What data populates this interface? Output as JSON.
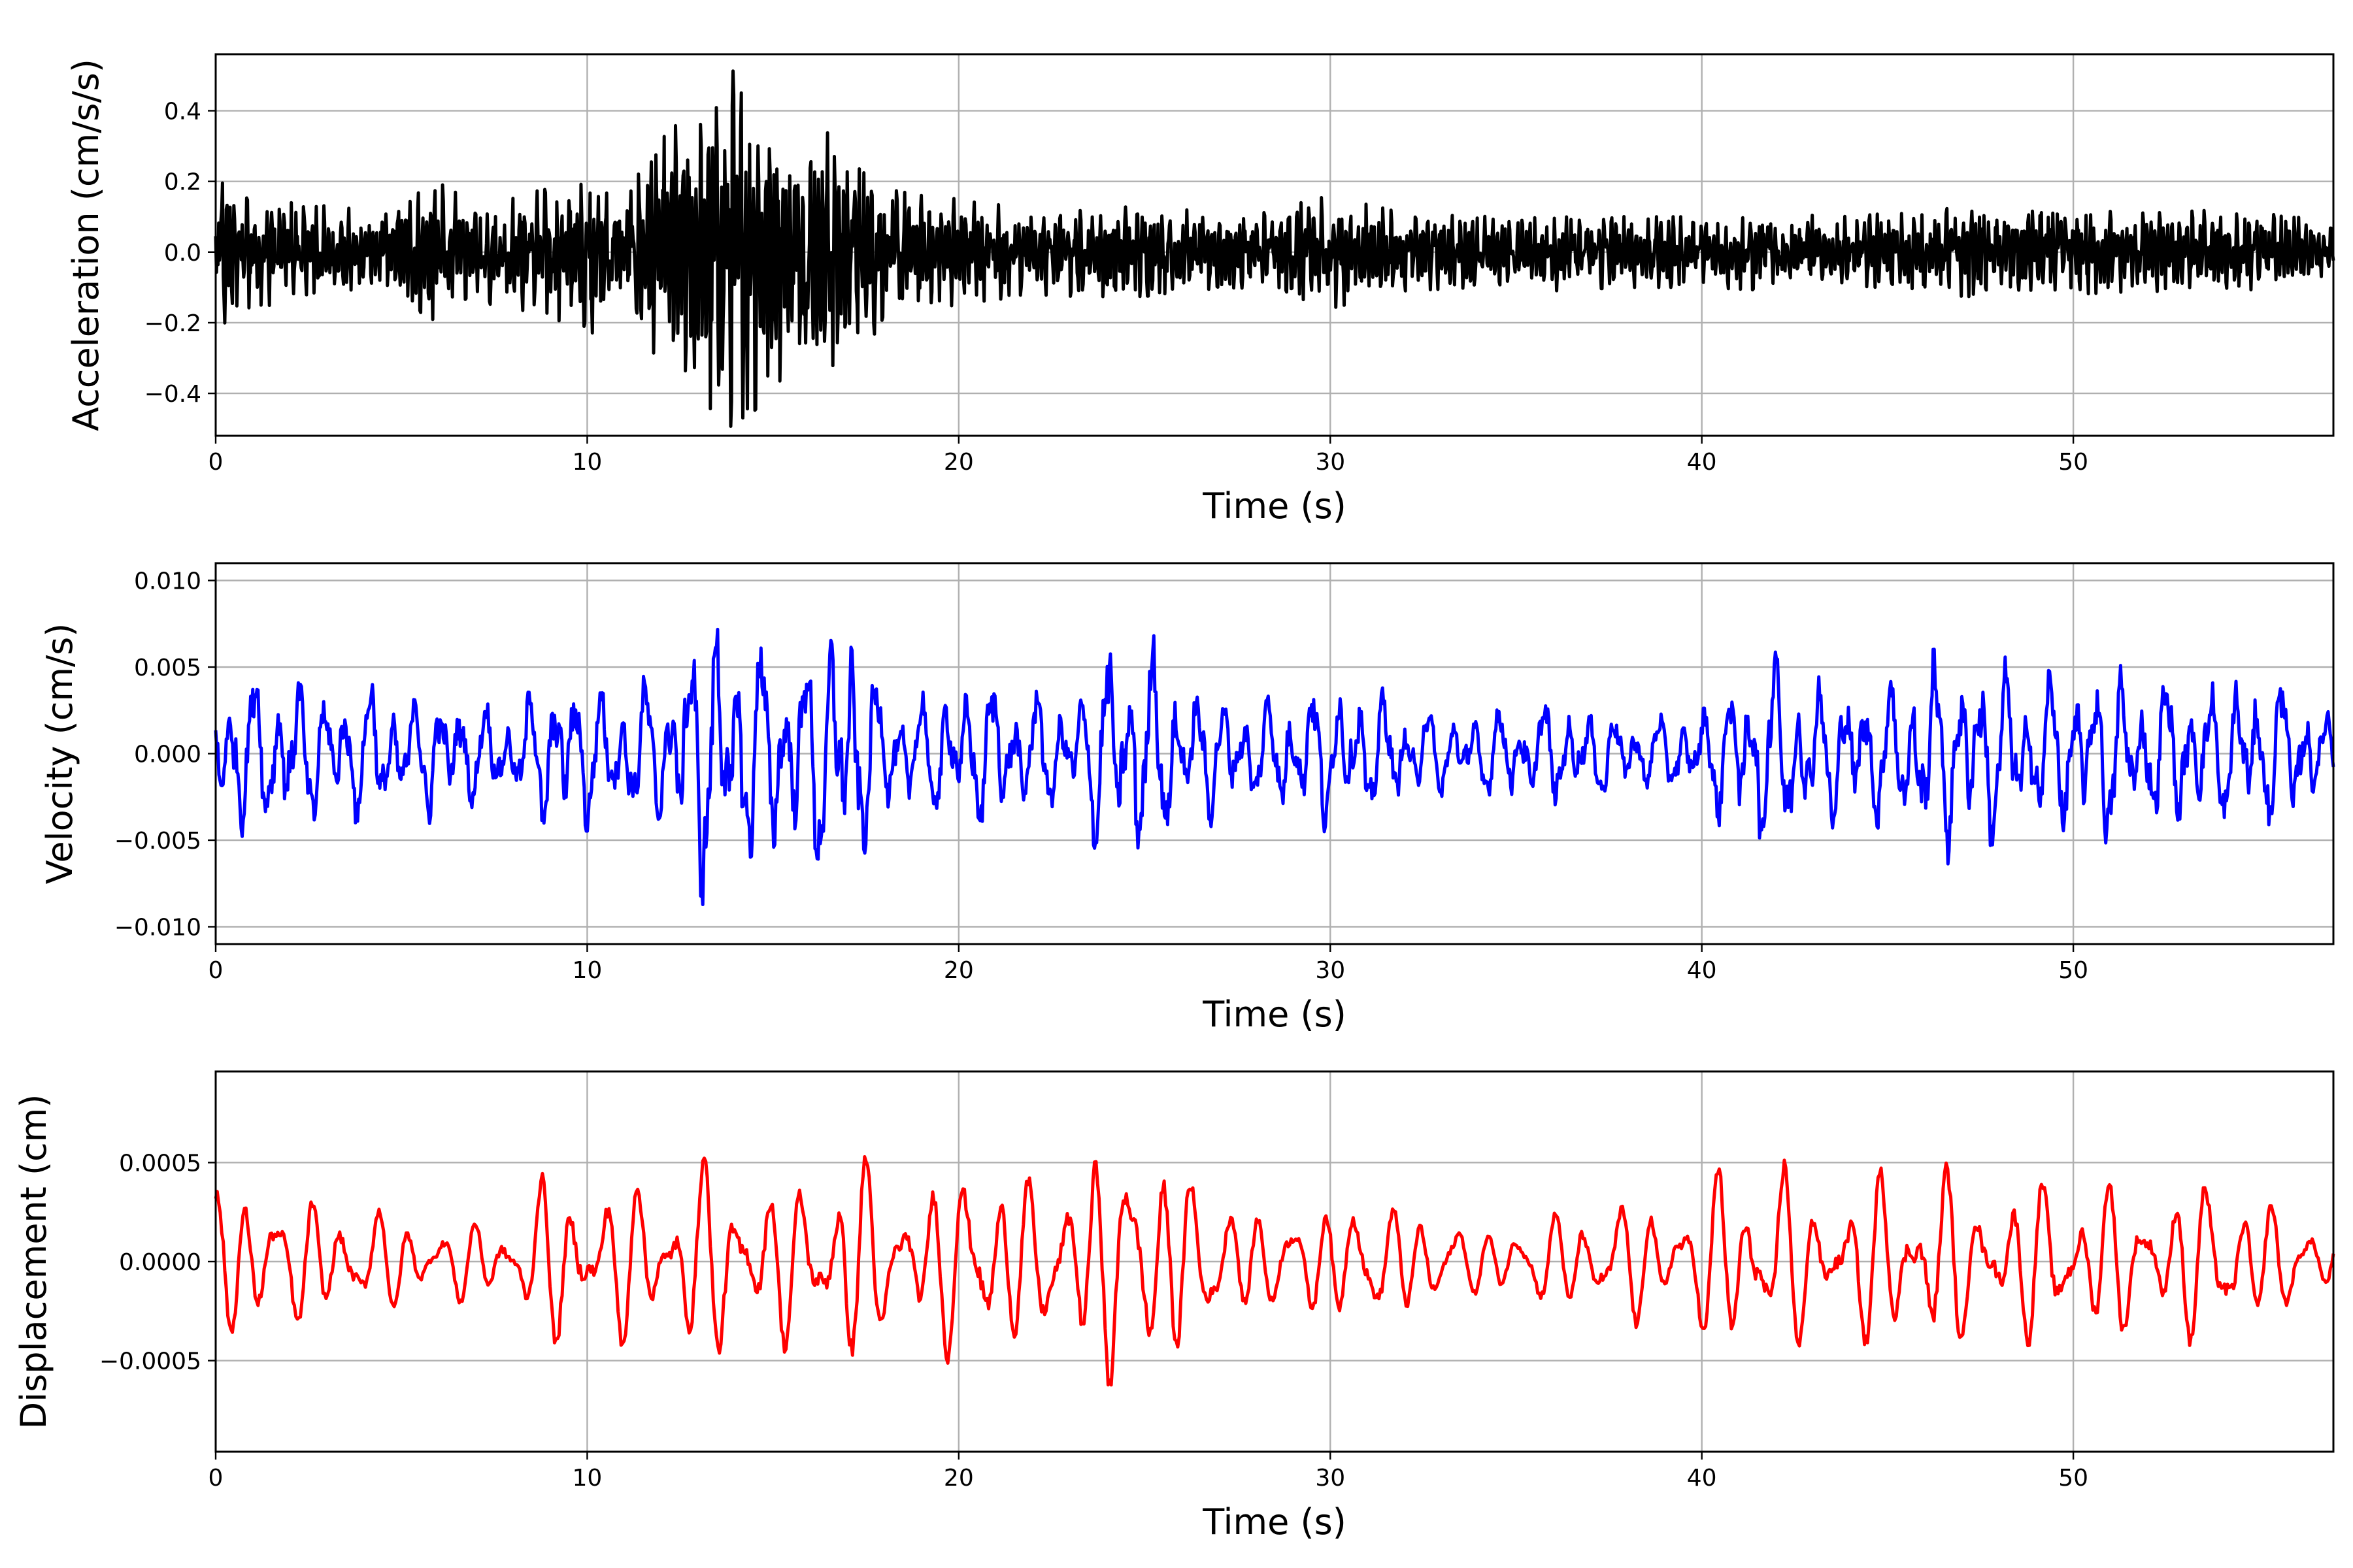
{
  "chart_data": [
    {
      "type": "line",
      "xlabel": "Time (s)",
      "ylabel": "Acceleration (cm/s/s)",
      "xlim": [
        0,
        57
      ],
      "ylim": [
        -0.52,
        0.56
      ],
      "grid": true,
      "xticks": [
        0,
        10,
        20,
        30,
        40,
        50
      ],
      "xtick_labels": [
        "0",
        "10",
        "20",
        "30",
        "40",
        "50"
      ],
      "yticks": [
        -0.4,
        -0.2,
        0.0,
        0.2,
        0.4
      ],
      "ytick_labels": [
        "−0.4",
        "−0.2",
        "0.0",
        "0.2",
        "0.4"
      ],
      "color": "#000000",
      "series": [
        {
          "x": [
            0,
            1,
            2,
            3,
            4,
            5,
            6,
            7,
            8,
            9,
            10,
            11,
            12,
            13,
            14,
            15,
            16,
            17,
            18,
            19,
            20,
            22,
            24,
            26,
            28,
            30,
            32,
            34,
            36,
            38,
            40,
            42,
            44,
            46,
            48,
            50,
            52,
            54,
            56,
            57
          ],
          "envelope": [
            0.22,
            0.16,
            0.14,
            0.13,
            0.12,
            0.14,
            0.2,
            0.14,
            0.16,
            0.18,
            0.24,
            0.16,
            0.32,
            0.42,
            0.52,
            0.38,
            0.3,
            0.38,
            0.18,
            0.16,
            0.15,
            0.12,
            0.13,
            0.12,
            0.11,
            0.16,
            0.11,
            0.1,
            0.11,
            0.1,
            0.1,
            0.11,
            0.1,
            0.12,
            0.13,
            0.12,
            0.11,
            0.12,
            0.1,
            0.07
          ]
        }
      ]
    },
    {
      "type": "line",
      "xlabel": "Time (s)",
      "ylabel": "Velocity (cm/s)",
      "xlim": [
        0,
        57
      ],
      "ylim": [
        -0.011,
        0.011
      ],
      "grid": true,
      "xticks": [
        0,
        10,
        20,
        30,
        40,
        50
      ],
      "xtick_labels": [
        "0",
        "10",
        "20",
        "30",
        "40",
        "50"
      ],
      "yticks": [
        -0.01,
        -0.005,
        0.0,
        0.005,
        0.01
      ],
      "ytick_labels": [
        "−0.010",
        "−0.005",
        "0.000",
        "0.005",
        "0.010"
      ],
      "color": "#0000ff",
      "series": [
        {
          "x": [
            0,
            1,
            2,
            3,
            4,
            5,
            6,
            7,
            8,
            9,
            10,
            11,
            12,
            13,
            14,
            15,
            16,
            17,
            18,
            19,
            20,
            21,
            22,
            23,
            24,
            25,
            26,
            27,
            28,
            29,
            30,
            31,
            32,
            33,
            34,
            35,
            36,
            37,
            38,
            39,
            40,
            41,
            42,
            43,
            44,
            45,
            46,
            47,
            48,
            49,
            50,
            51,
            52,
            53,
            54,
            55,
            56,
            57
          ],
          "envelope": [
            0.005,
            0.0055,
            0.0055,
            0.0045,
            0.005,
            0.004,
            0.0045,
            0.0035,
            0.003,
            0.006,
            0.005,
            0.0045,
            0.005,
            0.0095,
            0.0095,
            0.007,
            0.0075,
            0.01,
            0.004,
            0.004,
            0.005,
            0.005,
            0.0045,
            0.0035,
            0.0075,
            0.008,
            0.005,
            0.004,
            0.0035,
            0.0045,
            0.005,
            0.0045,
            0.0035,
            0.003,
            0.003,
            0.0035,
            0.0035,
            0.003,
            0.003,
            0.0025,
            0.003,
            0.006,
            0.0075,
            0.005,
            0.005,
            0.005,
            0.0065,
            0.0065,
            0.006,
            0.0055,
            0.0055,
            0.006,
            0.005,
            0.005,
            0.005,
            0.0055,
            0.005,
            0.0025
          ]
        }
      ]
    },
    {
      "type": "line",
      "xlabel": "Time (s)",
      "ylabel": "Displacement (cm)",
      "xlim": [
        0,
        57
      ],
      "ylim": [
        -0.00096,
        0.00096
      ],
      "grid": true,
      "xticks": [
        0,
        10,
        20,
        30,
        40,
        50
      ],
      "xtick_labels": [
        "0",
        "10",
        "20",
        "30",
        "40",
        "50"
      ],
      "yticks": [
        -0.0005,
        0.0,
        0.0005
      ],
      "ytick_labels": [
        "−0.0005",
        "0.0000",
        "0.0005"
      ],
      "color": "#ff0000",
      "series": [
        {
          "x": [
            0,
            1,
            2,
            3,
            4,
            5,
            6,
            7,
            8,
            9,
            10,
            11,
            12,
            13,
            14,
            15,
            16,
            17,
            18,
            19,
            20,
            21,
            22,
            23,
            24,
            25,
            26,
            27,
            28,
            29,
            30,
            31,
            32,
            33,
            34,
            35,
            36,
            37,
            38,
            39,
            40,
            41,
            42,
            43,
            44,
            45,
            46,
            47,
            48,
            49,
            50,
            51,
            52,
            53,
            54,
            55,
            56,
            57
          ],
          "envelope": [
            0.0005,
            0.00045,
            0.00045,
            0.00035,
            0.00035,
            0.0003,
            0.00025,
            0.00025,
            0.0003,
            0.00055,
            0.00055,
            0.0005,
            0.00055,
            0.0006,
            0.00065,
            0.0005,
            0.0005,
            0.00075,
            0.0005,
            0.00045,
            0.00065,
            0.0006,
            0.0005,
            0.0005,
            0.00085,
            0.0007,
            0.00065,
            0.0004,
            0.00035,
            0.0003,
            0.0004,
            0.0004,
            0.00035,
            0.0003,
            0.0002,
            0.00025,
            0.0003,
            0.00035,
            0.0004,
            0.00035,
            0.0005,
            0.00065,
            0.0007,
            0.0004,
            0.0005,
            0.00055,
            0.0007,
            0.0005,
            0.0005,
            0.0005,
            0.0005,
            0.0005,
            0.0004,
            0.0005,
            0.00055,
            0.0004,
            0.0003,
            0.0002
          ]
        }
      ]
    }
  ]
}
